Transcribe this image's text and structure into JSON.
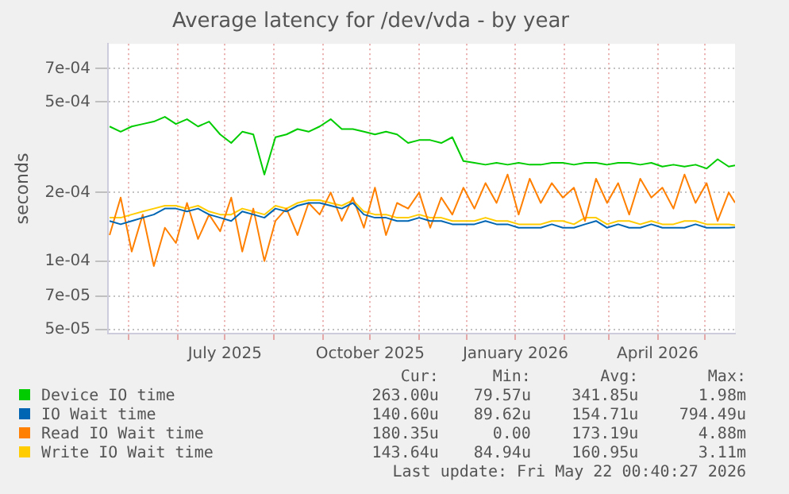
{
  "chart_data": {
    "type": "line",
    "title": "Average latency for /dev/vda - by year",
    "ylabel": "seconds",
    "log": "y",
    "grid": true,
    "legend": "bottom",
    "marker": "none",
    "line_style": "solid",
    "xlim": [
      "2025-04-18",
      "2026-05-20"
    ],
    "xticks": [
      {
        "value": "2025-05-01",
        "label": null
      },
      {
        "value": "2025-06-01",
        "label": null
      },
      {
        "value": "2025-07-01",
        "label": "July 2025"
      },
      {
        "value": "2025-08-01",
        "label": null
      },
      {
        "value": "2025-09-01",
        "label": null
      },
      {
        "value": "2025-10-01",
        "label": "October 2025"
      },
      {
        "value": "2025-11-01",
        "label": null
      },
      {
        "value": "2025-12-01",
        "label": null
      },
      {
        "value": "2026-01-01",
        "label": "January 2026"
      },
      {
        "value": "2026-02-01",
        "label": null
      },
      {
        "value": "2026-03-01",
        "label": null
      },
      {
        "value": "2026-04-01",
        "label": "April 2026"
      },
      {
        "value": "2026-05-01",
        "label": null
      }
    ],
    "ylim": [
      4.8e-05,
      0.0009
    ],
    "yticks": [
      {
        "value": 5e-05,
        "label": "5e-05"
      },
      {
        "value": 7e-05,
        "label": "7e-05"
      },
      {
        "value": 0.0001,
        "label": "1e-04"
      },
      {
        "value": 0.0002,
        "label": "2e-04"
      },
      {
        "value": 0.0005,
        "label": "5e-04"
      },
      {
        "value": 0.0007,
        "label": "7e-04"
      }
    ],
    "x": [
      "2025-04-19",
      "2025-04-26",
      "2025-05-03",
      "2025-05-10",
      "2025-05-17",
      "2025-05-24",
      "2025-05-31",
      "2025-06-07",
      "2025-06-14",
      "2025-06-21",
      "2025-06-28",
      "2025-07-05",
      "2025-07-12",
      "2025-07-19",
      "2025-07-26",
      "2025-08-02",
      "2025-08-09",
      "2025-08-16",
      "2025-08-23",
      "2025-08-30",
      "2025-09-06",
      "2025-09-13",
      "2025-09-20",
      "2025-09-27",
      "2025-10-04",
      "2025-10-11",
      "2025-10-18",
      "2025-10-25",
      "2025-11-01",
      "2025-11-08",
      "2025-11-15",
      "2025-11-22",
      "2025-11-29",
      "2025-12-06",
      "2025-12-13",
      "2025-12-20",
      "2025-12-27",
      "2026-01-03",
      "2026-01-10",
      "2026-01-17",
      "2026-01-24",
      "2026-01-31",
      "2026-02-07",
      "2026-02-14",
      "2026-02-21",
      "2026-02-28",
      "2026-03-07",
      "2026-03-14",
      "2026-03-21",
      "2026-03-28",
      "2026-04-04",
      "2026-04-11",
      "2026-04-18",
      "2026-04-25",
      "2026-05-02",
      "2026-05-09",
      "2026-05-16",
      "2026-05-20"
    ],
    "series": [
      {
        "name": "Device IO time",
        "color": "#00cc00",
        "values": [
          0.00039,
          0.00037,
          0.00039,
          0.0004,
          0.00041,
          0.00043,
          0.0004,
          0.00042,
          0.00039,
          0.00041,
          0.00036,
          0.00033,
          0.00037,
          0.00036,
          0.00024,
          0.00035,
          0.00036,
          0.00038,
          0.00037,
          0.00039,
          0.00042,
          0.00038,
          0.00038,
          0.00037,
          0.00036,
          0.00037,
          0.00036,
          0.00033,
          0.00034,
          0.00034,
          0.00033,
          0.00035,
          0.000275,
          0.00027,
          0.000265,
          0.00027,
          0.000265,
          0.00027,
          0.000265,
          0.000265,
          0.00027,
          0.00027,
          0.000265,
          0.00027,
          0.00027,
          0.000265,
          0.00027,
          0.00027,
          0.000265,
          0.00027,
          0.00026,
          0.000265,
          0.00026,
          0.000265,
          0.000255,
          0.00028,
          0.00026,
          0.000263
        ]
      },
      {
        "name": "IO Wait time",
        "color": "#0066b3",
        "values": [
          0.00015,
          0.000145,
          0.00015,
          0.000155,
          0.00016,
          0.00017,
          0.00017,
          0.000165,
          0.00017,
          0.00016,
          0.000155,
          0.00015,
          0.000165,
          0.00016,
          0.000155,
          0.00017,
          0.000165,
          0.000175,
          0.00018,
          0.00018,
          0.000175,
          0.00017,
          0.00018,
          0.00016,
          0.000155,
          0.000155,
          0.00015,
          0.00015,
          0.000155,
          0.00015,
          0.00015,
          0.000145,
          0.000145,
          0.000145,
          0.00015,
          0.000145,
          0.000145,
          0.00014,
          0.00014,
          0.00014,
          0.000145,
          0.00014,
          0.00014,
          0.000145,
          0.00015,
          0.00014,
          0.000145,
          0.00014,
          0.00014,
          0.000145,
          0.00014,
          0.00014,
          0.00014,
          0.000145,
          0.00014,
          0.00014,
          0.00014,
          0.0001406
        ]
      },
      {
        "name": "Read IO Wait time",
        "color": "#ff8000",
        "values": [
          0.00013,
          0.00019,
          0.00011,
          0.00016,
          9.5e-05,
          0.00014,
          0.00012,
          0.00018,
          0.000125,
          0.00016,
          0.000135,
          0.00019,
          0.00011,
          0.00017,
          0.0001,
          0.00015,
          0.00017,
          0.00013,
          0.00018,
          0.00016,
          0.0002,
          0.00015,
          0.00019,
          0.00014,
          0.00021,
          0.00013,
          0.00018,
          0.00017,
          0.0002,
          0.00014,
          0.00019,
          0.00016,
          0.00021,
          0.00017,
          0.00022,
          0.00018,
          0.00024,
          0.00016,
          0.00023,
          0.00018,
          0.00022,
          0.00019,
          0.00021,
          0.00015,
          0.00023,
          0.00018,
          0.00022,
          0.00016,
          0.00023,
          0.00019,
          0.00021,
          0.00017,
          0.00024,
          0.00018,
          0.00022,
          0.00015,
          0.0002,
          0.00018035
        ]
      },
      {
        "name": "Write IO Wait time",
        "color": "#ffcc00",
        "values": [
          0.000155,
          0.000155,
          0.00016,
          0.000165,
          0.00017,
          0.000175,
          0.000175,
          0.00017,
          0.000175,
          0.000165,
          0.00016,
          0.00016,
          0.00017,
          0.000165,
          0.00016,
          0.000175,
          0.00017,
          0.00018,
          0.000185,
          0.000185,
          0.00018,
          0.000175,
          0.000185,
          0.000165,
          0.00016,
          0.00016,
          0.000155,
          0.000155,
          0.00016,
          0.000155,
          0.000155,
          0.00015,
          0.00015,
          0.00015,
          0.000155,
          0.00015,
          0.00015,
          0.000145,
          0.000145,
          0.000145,
          0.00015,
          0.00015,
          0.000145,
          0.000155,
          0.000155,
          0.000145,
          0.00015,
          0.00015,
          0.000145,
          0.00015,
          0.000145,
          0.000145,
          0.00015,
          0.00015,
          0.000145,
          0.000145,
          0.000145,
          0.00014364
        ]
      }
    ],
    "annotations": [
      "Cur:",
      "Min:",
      "Avg:",
      "Max:",
      "263.00u",
      "79.57u",
      "341.85u",
      "1.98m",
      "140.60u",
      "89.62u",
      "154.71u",
      "794.49u",
      "180.35u",
      "0.00",
      "173.19u",
      "4.88m",
      "143.64u",
      "84.94u",
      "160.95u",
      "3.11m",
      "Last update: Fri May 22 00:40:27 2026"
    ]
  }
}
